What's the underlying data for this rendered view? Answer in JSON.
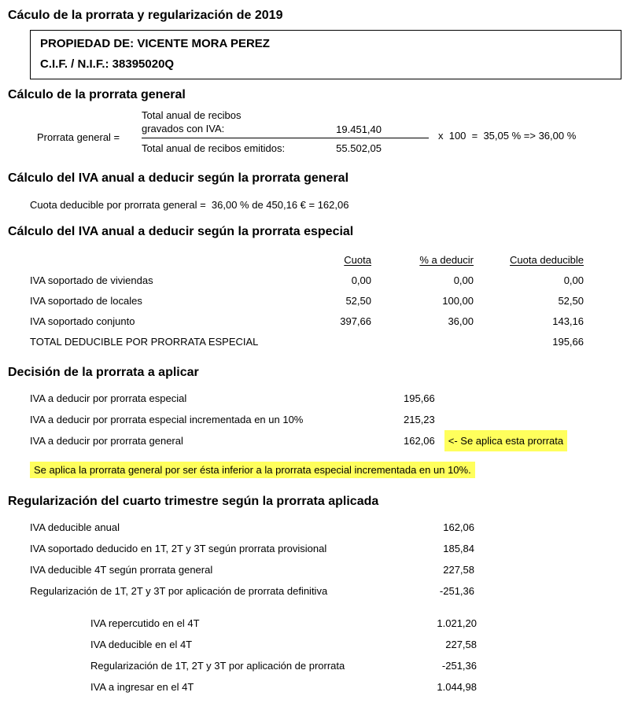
{
  "title": "Cáculo de la prorrata y regularización de 2019",
  "owner_box": {
    "line1": "PROPIEDAD DE: VICENTE MORA PEREZ",
    "line2": "C.I.F. / N.I.F.: 38395020Q"
  },
  "prorrata_general": {
    "heading": "Cálculo de la prorrata general",
    "formula_label": "Prorrata general =",
    "numerator_label_line1": "Total anual de recibos",
    "numerator_label_line2": "gravados con IVA:",
    "numerator_value": "19.451,40",
    "denominator_label": "Total anual de recibos emitidos:",
    "denominator_value": "55.502,05",
    "expression": "x  100  =  35,05 % => 36,00 %"
  },
  "iva_general": {
    "heading": "Cálculo del IVA anual a deducir según la prorrata general",
    "line": "Cuota deducible por prorrata general =  36,00 % de 450,16 € = 162,06"
  },
  "iva_especial": {
    "heading": "Cálculo del IVA anual a deducir según la prorrata especial",
    "columns": [
      "Cuota",
      "% a deducir",
      "Cuota deducible"
    ],
    "rows": [
      {
        "label": "IVA soportado de viviendas",
        "cuota": "0,00",
        "pct": "0,00",
        "deducible": "0,00"
      },
      {
        "label": "IVA soportado de locales",
        "cuota": "52,50",
        "pct": "100,00",
        "deducible": "52,50"
      },
      {
        "label": "IVA soportado conjunto",
        "cuota": "397,66",
        "pct": "36,00",
        "deducible": "143,16"
      }
    ],
    "total": {
      "label": "TOTAL DEDUCIBLE POR PRORRATA ESPECIAL",
      "value": "195,66"
    }
  },
  "decision": {
    "heading": "Decisión de la prorrata a aplicar",
    "rows": [
      {
        "label": "IVA a deducir por prorrata especial",
        "value": "195,66",
        "note": ""
      },
      {
        "label": "IVA a deducir por prorrata especial incrementada en un 10%",
        "value": "215,23",
        "note": ""
      },
      {
        "label": "IVA a deducir por prorrata general",
        "value": "162,06",
        "note": "<- Se aplica esta prorrata"
      }
    ],
    "note": "Se aplica la prorrata general por ser ésta inferior a la prorrata especial incrementada en un 10%."
  },
  "regularizacion": {
    "heading": "Regularización del cuarto trimestre según la prorrata aplicada",
    "rows": [
      {
        "label": "IVA deducible anual",
        "value": "162,06"
      },
      {
        "label": "IVA soportado deducido en 1T, 2T y 3T según prorrata provisional",
        "value": "185,84"
      },
      {
        "label": "IVA deducible 4T según prorrata general",
        "value": "227,58"
      },
      {
        "label": "Regularización de 1T, 2T y 3T por aplicación de prorrata definitiva",
        "value": "-251,36"
      }
    ],
    "summary_rows": [
      {
        "label": "IVA repercutido en el 4T",
        "value": "1.021,20"
      },
      {
        "label": "IVA deducible en el 4T",
        "value": "227,58"
      },
      {
        "label": "Regularización de 1T, 2T y 3T por aplicación de prorrata",
        "value": "-251,36"
      },
      {
        "label": "IVA a ingresar en el 4T",
        "value": "1.044,98"
      }
    ]
  },
  "colors": {
    "highlight": "#FFFF5C"
  }
}
